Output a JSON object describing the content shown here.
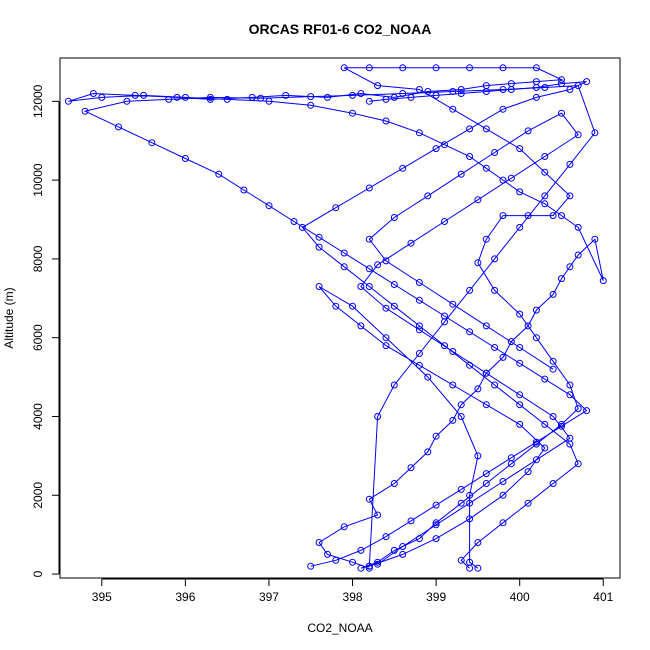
{
  "chart_data": {
    "type": "line",
    "title": "ORCAS RF01-6 CO2_NOAA",
    "xlabel": "CO2_NOAA",
    "ylabel": "Altitude (m)",
    "xlim": [
      394.5,
      401.2
    ],
    "ylim": [
      -100,
      13100
    ],
    "xticks": [
      395,
      396,
      397,
      398,
      399,
      400,
      401
    ],
    "yticks": [
      0,
      2000,
      4000,
      6000,
      8000,
      10000,
      12000
    ],
    "xtick_labels": [
      "395",
      "396",
      "397",
      "398",
      "399",
      "400",
      "401"
    ],
    "ytick_labels": [
      "0",
      "2000",
      "4000",
      "6000",
      "8000",
      "10000",
      "12000"
    ],
    "grid": false,
    "legend": "none",
    "colors": {
      "series": "#0000ff",
      "axis": "#000000",
      "background": "#ffffff"
    },
    "series": [
      {
        "marker": "open-circle",
        "x": [
          398.2,
          398.0,
          397.7,
          397.6,
          397.9,
          398.3,
          398.2,
          398.5,
          398.7,
          398.9,
          399.0,
          399.2,
          399.3,
          399.5,
          399.6,
          399.8,
          399.9,
          400.1,
          400.2,
          400.4,
          400.5,
          400.6,
          400.7,
          400.9,
          401.0,
          400.7,
          400.5,
          400.3,
          400.0,
          399.8,
          399.6,
          399.4,
          399.1,
          398.8,
          398.4,
          398.0,
          397.5,
          397.0,
          396.5,
          396.0,
          395.5,
          395.0,
          394.6,
          394.9,
          395.4,
          395.9,
          396.3,
          396.8,
          397.2,
          397.7,
          398.1,
          398.5,
          398.9,
          399.3,
          399.6,
          399.9,
          400.2,
          400.5,
          400.2,
          399.8,
          399.4,
          399.0,
          398.6,
          398.2,
          397.9,
          398.3,
          398.8,
          399.2,
          399.6,
          400.0,
          400.3,
          400.6,
          400.4,
          400.1,
          399.8,
          399.6,
          399.5,
          399.7,
          400.0,
          400.2,
          400.4,
          400.6,
          400.7,
          400.5,
          400.2,
          399.9,
          399.6,
          399.3,
          399.0,
          398.8,
          398.5,
          398.3,
          398.1,
          398.2,
          398.6,
          399.0,
          399.4,
          399.8,
          400.1,
          400.3,
          400.0,
          399.6,
          399.2,
          398.8,
          398.4,
          398.1,
          397.8,
          397.6,
          398.0,
          398.4,
          398.9,
          399.3,
          399.5,
          399.4,
          399.4,
          399.5
        ],
        "y": [
          150,
          300,
          500,
          800,
          1200,
          1500,
          1900,
          2300,
          2700,
          3100,
          3500,
          3900,
          4300,
          4700,
          5100,
          5500,
          5900,
          6300,
          6700,
          7100,
          7500,
          7800,
          8100,
          8500,
          7450,
          8800,
          9100,
          9400,
          9700,
          10000,
          10300,
          10600,
          10900,
          11200,
          11500,
          11700,
          11900,
          12000,
          12050,
          12100,
          12150,
          12100,
          12000,
          12200,
          12150,
          12100,
          12050,
          12100,
          12150,
          12100,
          12200,
          12100,
          12250,
          12300,
          12400,
          12450,
          12500,
          12550,
          12850,
          12850,
          12850,
          12850,
          12850,
          12850,
          12850,
          12400,
          12300,
          11800,
          11300,
          10800,
          10200,
          9600,
          9100,
          9100,
          9100,
          8500,
          7900,
          7200,
          6600,
          6000,
          5400,
          4800,
          4200,
          3800,
          3300,
          2800,
          2300,
          1800,
          1300,
          900,
          600,
          300,
          150,
          200,
          500,
          900,
          1400,
          2000,
          2600,
          3200,
          3800,
          4300,
          4800,
          5300,
          5800,
          6300,
          6800,
          7300,
          6800,
          6000,
          5000,
          4000,
          3000,
          2000,
          300,
          150
        ]
      },
      {
        "marker": "open-circle",
        "x": [
          397.5,
          397.8,
          398.1,
          398.4,
          398.7,
          399.0,
          399.3,
          399.6,
          399.9,
          400.2,
          400.5,
          400.8,
          400.6,
          400.3,
          400.0,
          399.7,
          399.4,
          399.1,
          398.8,
          398.5,
          398.2,
          397.9,
          397.6,
          397.3,
          397.0,
          396.7,
          396.4,
          396.0,
          395.6,
          395.2,
          394.8,
          395.3,
          395.8,
          396.3,
          396.9,
          397.5,
          398.0,
          398.6,
          399.2,
          399.8,
          400.3,
          400.7,
          400.9,
          400.6,
          400.3,
          400.0,
          399.7,
          399.4,
          399.1,
          398.8,
          398.5,
          398.3,
          398.2
        ],
        "y": [
          200,
          350,
          600,
          950,
          1350,
          1750,
          2150,
          2550,
          2950,
          3350,
          3750,
          4150,
          4550,
          4950,
          5350,
          5750,
          6150,
          6550,
          6950,
          7350,
          7750,
          8150,
          8550,
          8950,
          9350,
          9750,
          10150,
          10550,
          10950,
          11350,
          11750,
          12000,
          12050,
          12100,
          12080,
          12120,
          12150,
          12200,
          12250,
          12300,
          12350,
          12400,
          11200,
          10400,
          9600,
          8800,
          8000,
          7200,
          6400,
          5600,
          4800,
          4000,
          200
        ]
      },
      {
        "marker": "open-circle",
        "x": [
          398.3,
          398.6,
          399.0,
          399.4,
          399.8,
          400.2,
          400.6,
          400.4,
          400.0,
          399.6,
          399.2,
          398.8,
          398.4,
          398.1,
          398.3,
          398.7,
          399.1,
          399.5,
          399.9,
          400.3,
          400.7,
          400.5,
          400.1,
          399.7,
          399.3,
          398.9,
          398.5,
          398.2,
          398.4,
          398.8,
          399.2,
          399.6,
          400.0,
          400.4
        ],
        "y": [
          250,
          700,
          1250,
          1800,
          2350,
          2900,
          3450,
          4000,
          4550,
          5100,
          5650,
          6200,
          6750,
          7300,
          7850,
          8400,
          8950,
          9500,
          10050,
          10600,
          11150,
          11700,
          11250,
          10700,
          10150,
          9600,
          9050,
          8500,
          7950,
          7400,
          6850,
          6300,
          5750,
          5200
        ]
      },
      {
        "marker": "open-circle",
        "x": [
          399.4,
          399.3,
          399.5,
          399.8,
          400.1,
          400.4,
          400.7,
          400.6,
          400.3,
          400.0,
          399.7,
          399.4,
          399.1,
          398.8,
          398.5,
          398.2,
          397.9,
          397.6,
          397.4,
          397.8,
          398.2,
          398.6,
          399.0,
          399.4,
          399.8,
          400.2,
          400.6,
          400.8,
          400.5,
          400.2,
          399.9,
          399.6,
          399.3,
          399.0,
          398.7,
          398.4,
          398.2
        ],
        "y": [
          150,
          350,
          800,
          1300,
          1800,
          2300,
          2800,
          3300,
          3800,
          4300,
          4800,
          5300,
          5800,
          6300,
          6800,
          7300,
          7800,
          8300,
          8800,
          9300,
          9800,
          10300,
          10800,
          11300,
          11800,
          12100,
          12300,
          12500,
          12450,
          12350,
          12300,
          12250,
          12200,
          12150,
          12100,
          12050,
          12000
        ]
      }
    ]
  }
}
